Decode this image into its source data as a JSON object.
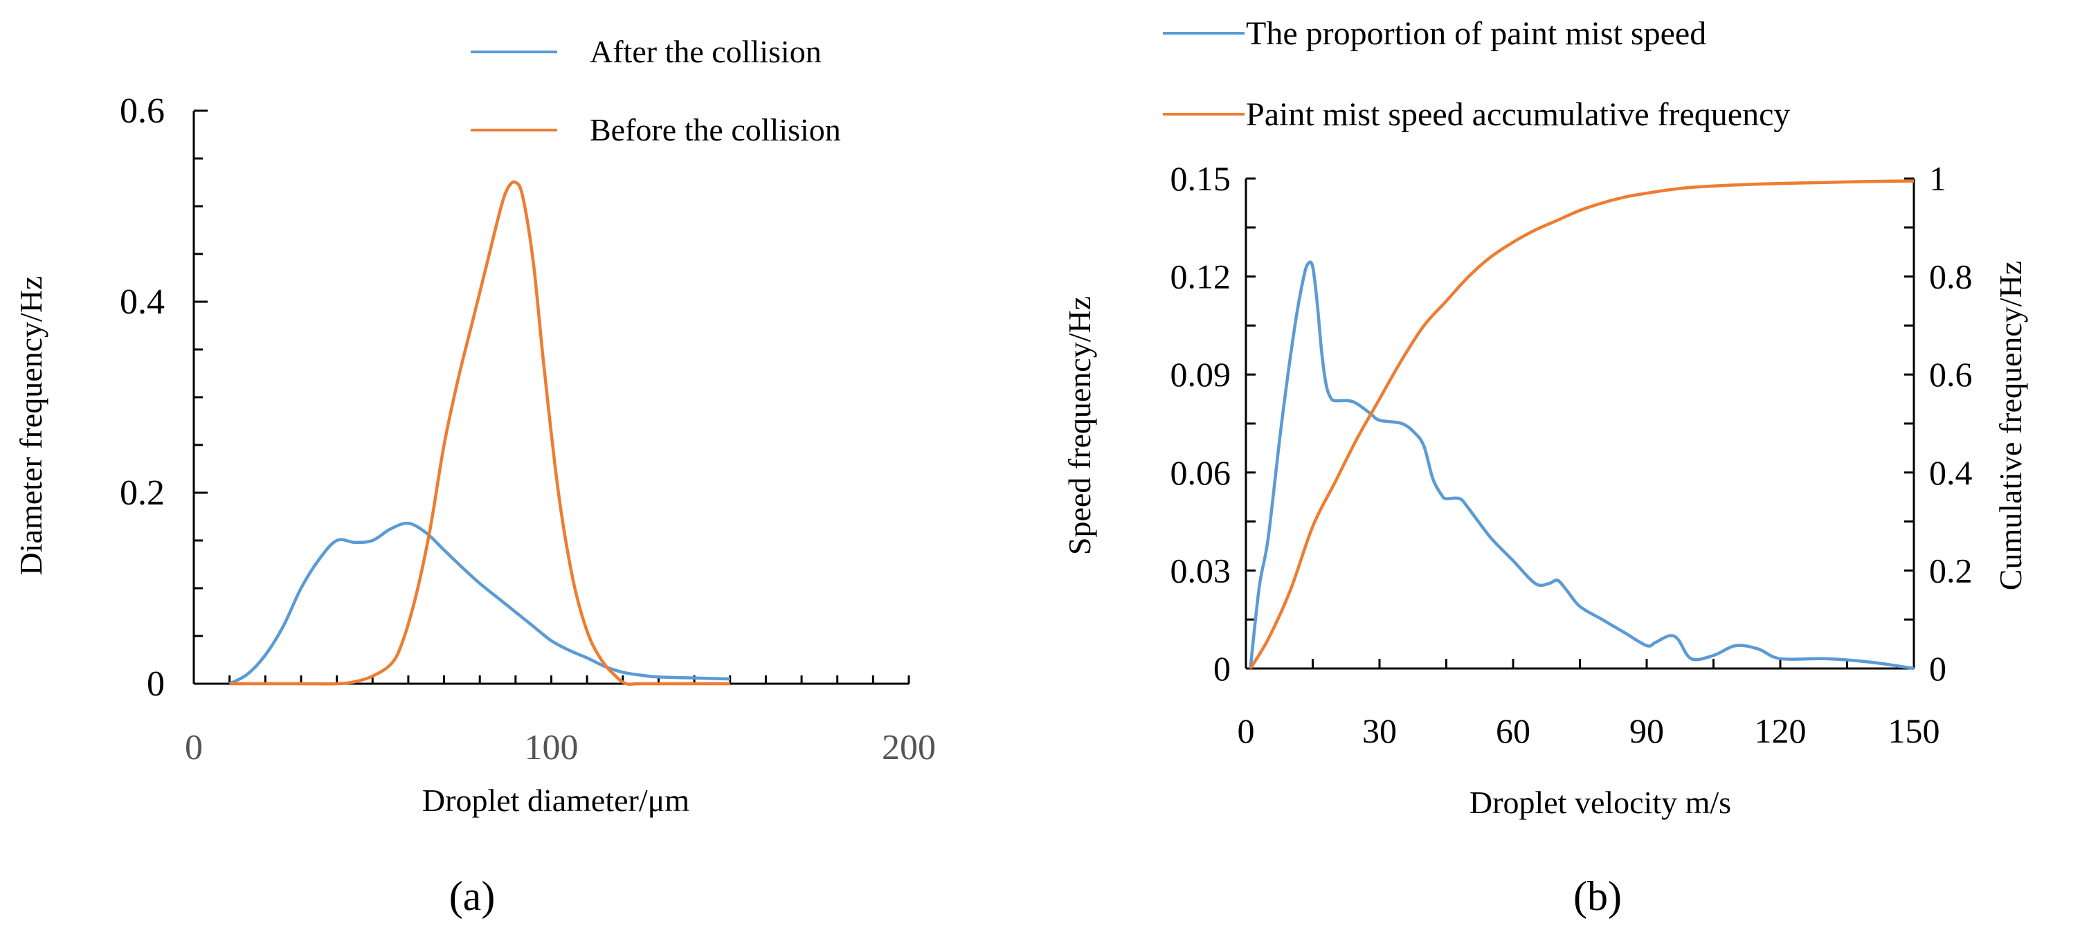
{
  "colors": {
    "blue": "#5b9bd5",
    "orange": "#ed7d31",
    "axis": "#000000",
    "tick_label_a": "#555555"
  },
  "chart_data": [
    {
      "panel": "(a)",
      "type": "line",
      "xlabel": "Droplet diameter/μm",
      "ylabel": "Diameter frequency/Hz",
      "xlim": [
        0,
        200
      ],
      "ylim": [
        0,
        0.6
      ],
      "x_ticks": [
        "0",
        "100",
        "200"
      ],
      "y_ticks": [
        "0",
        "0.2",
        "0.4",
        "0.6"
      ],
      "legend_position": "top-right",
      "series": [
        {
          "name": "After the collision",
          "color": "#5b9bd5",
          "x": [
            10,
            15,
            20,
            25,
            30,
            35,
            40,
            45,
            50,
            55,
            60,
            65,
            70,
            75,
            80,
            85,
            90,
            95,
            100,
            105,
            110,
            115,
            120,
            125,
            130,
            140,
            150
          ],
          "y": [
            0.0,
            0.01,
            0.03,
            0.06,
            0.1,
            0.13,
            0.15,
            0.148,
            0.15,
            0.162,
            0.168,
            0.158,
            0.14,
            0.122,
            0.105,
            0.09,
            0.075,
            0.06,
            0.045,
            0.035,
            0.027,
            0.018,
            0.012,
            0.009,
            0.007,
            0.006,
            0.005
          ]
        },
        {
          "name": "Before the collision",
          "color": "#ed7d31",
          "x": [
            10,
            30,
            40,
            45,
            50,
            55,
            58,
            62,
            66,
            70,
            74,
            78,
            82,
            86,
            88,
            90,
            92,
            95,
            98,
            102,
            106,
            110,
            114,
            118,
            121,
            125,
            140,
            150
          ],
          "y": [
            0.0,
            0.0,
            0.0,
            0.002,
            0.008,
            0.02,
            0.04,
            0.09,
            0.16,
            0.25,
            0.32,
            0.38,
            0.44,
            0.5,
            0.52,
            0.525,
            0.51,
            0.44,
            0.33,
            0.2,
            0.11,
            0.055,
            0.025,
            0.008,
            0.0,
            0.0,
            0.0,
            0.0
          ]
        }
      ]
    },
    {
      "panel": "(b)",
      "type": "line",
      "xlabel": "Droplet velocity m/s",
      "ylabel": "Speed frequency/Hz",
      "y2label": "Cumulative frequency/Hz",
      "xlim": [
        0,
        150
      ],
      "ylim": [
        0,
        0.15
      ],
      "y2lim": [
        0,
        1
      ],
      "x_ticks": [
        "0",
        "30",
        "60",
        "90",
        "120",
        "150"
      ],
      "y_ticks": [
        "0",
        "0.03",
        "0.06",
        "0.09",
        "0.12",
        "0.15"
      ],
      "y2_ticks": [
        "0",
        "0.2",
        "0.4",
        "0.6",
        "0.8",
        "1"
      ],
      "legend_position": "top",
      "series": [
        {
          "name": "The proportion of paint mist speed",
          "color": "#5b9bd5",
          "axis": "left",
          "x": [
            1,
            3,
            5,
            8,
            11,
            13,
            14,
            15,
            16,
            17,
            18,
            19,
            20,
            23,
            25,
            28,
            30,
            35,
            38,
            40,
            42,
            44,
            45,
            48,
            50,
            55,
            60,
            65,
            68,
            70,
            72,
            75,
            80,
            85,
            90,
            92,
            95,
            97,
            100,
            105,
            110,
            115,
            120,
            130,
            140,
            150
          ],
          "y": [
            0.0,
            0.025,
            0.04,
            0.075,
            0.105,
            0.12,
            0.124,
            0.123,
            0.112,
            0.097,
            0.087,
            0.083,
            0.082,
            0.082,
            0.081,
            0.078,
            0.076,
            0.075,
            0.072,
            0.068,
            0.058,
            0.053,
            0.052,
            0.052,
            0.049,
            0.04,
            0.033,
            0.026,
            0.026,
            0.027,
            0.024,
            0.019,
            0.015,
            0.011,
            0.007,
            0.008,
            0.01,
            0.009,
            0.003,
            0.004,
            0.007,
            0.006,
            0.003,
            0.003,
            0.002,
            0.0
          ]
        },
        {
          "name": "Paint mist speed  accumulative frequency",
          "color": "#ed7d31",
          "axis": "right",
          "x": [
            1,
            5,
            10,
            15,
            20,
            25,
            30,
            35,
            40,
            45,
            50,
            55,
            60,
            65,
            70,
            75,
            80,
            85,
            90,
            95,
            100,
            110,
            120,
            130,
            140,
            150
          ],
          "y": [
            0.0,
            0.06,
            0.16,
            0.29,
            0.38,
            0.47,
            0.55,
            0.63,
            0.7,
            0.75,
            0.8,
            0.84,
            0.87,
            0.895,
            0.915,
            0.935,
            0.95,
            0.962,
            0.97,
            0.977,
            0.982,
            0.987,
            0.99,
            0.992,
            0.994,
            0.995
          ]
        }
      ]
    }
  ]
}
